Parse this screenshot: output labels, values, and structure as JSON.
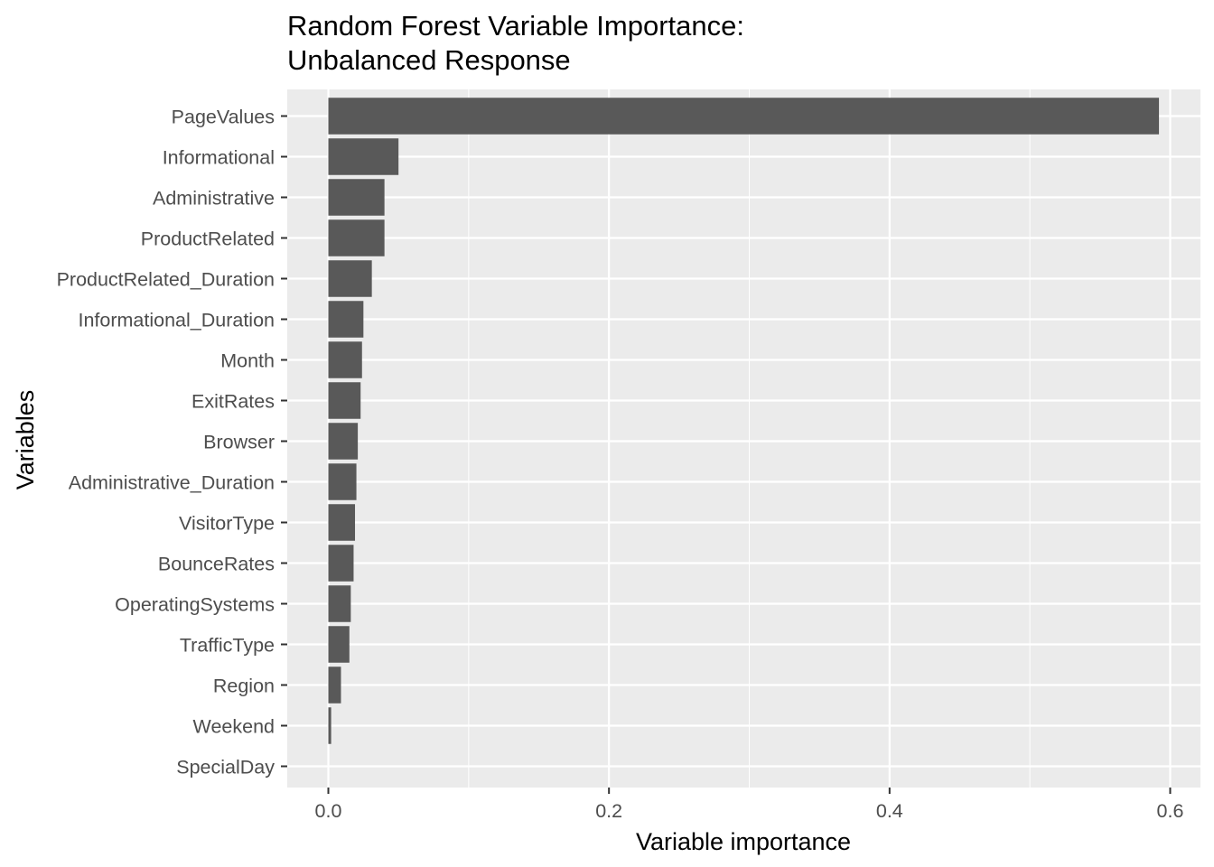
{
  "chart_data": {
    "type": "bar",
    "orientation": "horizontal",
    "title_lines": [
      "Random Forest Variable Importance:",
      "Unbalanced Response"
    ],
    "xlabel": "Variable importance",
    "ylabel": "Variables",
    "categories": [
      "PageValues",
      "Informational",
      "Administrative",
      "ProductRelated",
      "ProductRelated_Duration",
      "Informational_Duration",
      "Month",
      "ExitRates",
      "Browser",
      "Administrative_Duration",
      "VisitorType",
      "BounceRates",
      "OperatingSystems",
      "TrafficType",
      "Region",
      "Weekend",
      "SpecialDay"
    ],
    "values": [
      0.592,
      0.05,
      0.04,
      0.04,
      0.031,
      0.025,
      0.024,
      0.023,
      0.021,
      0.02,
      0.019,
      0.018,
      0.016,
      0.015,
      0.009,
      0.002,
      0.0
    ],
    "xlim": [
      -0.03,
      0.62
    ],
    "xticks": [
      0.0,
      0.2,
      0.4,
      0.6
    ],
    "xtick_labels": [
      "0.0",
      "0.2",
      "0.4",
      "0.6"
    ],
    "grid": true,
    "bar_color": "#595959",
    "panel_color": "#EBEBEB",
    "grid_color": "#FFFFFF"
  }
}
